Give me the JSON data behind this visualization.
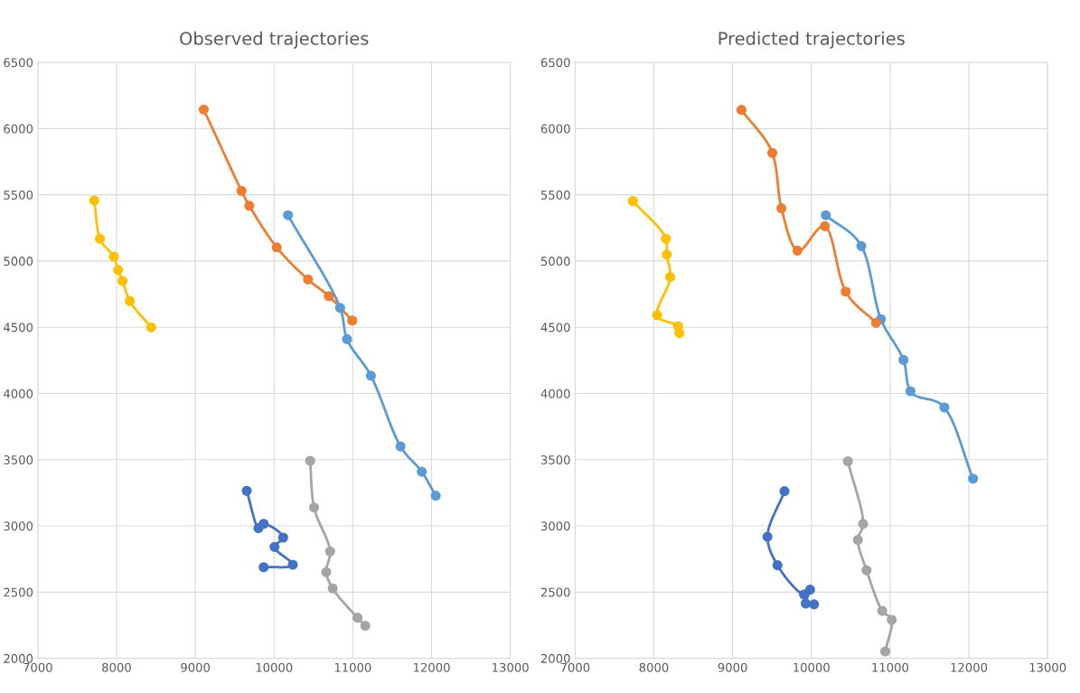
{
  "chart_data": [
    {
      "type": "line",
      "title": "Observed trajectories",
      "xlim": [
        7000,
        13000
      ],
      "ylim": [
        2000,
        6500
      ],
      "xticks": [
        7000,
        8000,
        9000,
        10000,
        11000,
        12000,
        13000
      ],
      "yticks": [
        2000,
        2500,
        3000,
        3500,
        4000,
        4500,
        5000,
        5500,
        6000,
        6500
      ],
      "grid": true,
      "marker": "circle",
      "line_style": "solid",
      "series": [
        {
          "color": "#5b9bd5",
          "x": [
            10177,
            10839,
            10927,
            11230,
            11606,
            11876,
            12053
          ],
          "values": [
            5346,
            4646,
            4410,
            4134,
            3600,
            3409,
            3228
          ]
        },
        {
          "color": "#ed7d31",
          "x": [
            9107,
            9587,
            9686,
            10034,
            10431,
            10696,
            10993
          ],
          "values": [
            6144,
            5530,
            5417,
            5103,
            4861,
            4735,
            4551
          ]
        },
        {
          "color": "#a5a5a5",
          "x": [
            10458,
            10508,
            10712,
            10662,
            10745,
            11060,
            11159
          ],
          "values": [
            3492,
            3139,
            2808,
            2651,
            2528,
            2307,
            2246
          ]
        },
        {
          "color": "#ffc000",
          "x": [
            7717,
            7789,
            7965,
            8020,
            8076,
            8169,
            8440
          ],
          "values": [
            5457,
            5168,
            5033,
            4932,
            4849,
            4698,
            4499
          ]
        },
        {
          "color": "#4472c4",
          "x": [
            9653,
            9802,
            9868,
            10116,
            10006,
            10238,
            9868
          ],
          "values": [
            3265,
            2983,
            3016,
            2912,
            2841,
            2707,
            2688
          ]
        }
      ]
    },
    {
      "type": "line",
      "title": "Predicted trajectories",
      "xlim": [
        7000,
        13000
      ],
      "ylim": [
        2000,
        6500
      ],
      "xticks": [
        7000,
        8000,
        9000,
        10000,
        11000,
        12000,
        13000
      ],
      "yticks": [
        2000,
        2500,
        3000,
        3500,
        4000,
        4500,
        5000,
        5500,
        6000,
        6500
      ],
      "grid": true,
      "marker": "circle",
      "line_style": "solid",
      "series": [
        {
          "color": "#5b9bd5",
          "x": [
            10183,
            10635,
            10883,
            11170,
            11258,
            11689,
            12053
          ],
          "values": [
            5346,
            5113,
            4561,
            4253,
            4017,
            3894,
            3357
          ]
        },
        {
          "color": "#ed7d31",
          "x": [
            9113,
            9504,
            9620,
            9824,
            10172,
            10436,
            10822
          ],
          "values": [
            6141,
            5816,
            5398,
            5079,
            5263,
            4769,
            4533
          ]
        },
        {
          "color": "#a5a5a5",
          "x": [
            10464,
            10657,
            10591,
            10701,
            10900,
            11021,
            10938
          ],
          "values": [
            3488,
            3015,
            2895,
            2665,
            2358,
            2291,
            2052
          ]
        },
        {
          "color": "#ffc000",
          "x": [
            7734,
            8153,
            8164,
            8208,
            8042,
            8307,
            8324
          ],
          "values": [
            5453,
            5168,
            5048,
            4879,
            4591,
            4508,
            4456
          ]
        },
        {
          "color": "#4472c4",
          "x": [
            9659,
            9443,
            9570,
            9907,
            9984,
            9929,
            10034
          ],
          "values": [
            3262,
            2918,
            2703,
            2482,
            2519,
            2414,
            2408
          ]
        }
      ]
    }
  ]
}
